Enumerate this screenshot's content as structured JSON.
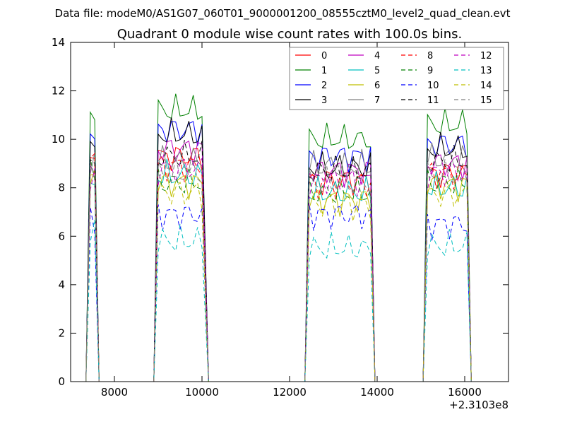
{
  "chart_data": {
    "type": "line",
    "suptitle": "Data file: modeM0/AS1G07_060T01_9000001200_08555cztM0_level2_quad_clean.evt",
    "title": "Quadrant 0 module wise count rates with 100.0s bins.",
    "xlabel": "",
    "ylabel": "",
    "x_offset_label": "+2.3103e8",
    "xlim": [
      7000,
      17000
    ],
    "ylim": [
      0,
      14
    ],
    "xticks": [
      8000,
      10000,
      12000,
      14000,
      16000
    ],
    "xtick_labels": [
      "8000",
      "10000",
      "12000",
      "14000",
      "16000"
    ],
    "yticks": [
      0,
      2,
      4,
      6,
      8,
      10,
      12,
      14
    ],
    "ytick_labels": [
      "0",
      "2",
      "4",
      "6",
      "8",
      "10",
      "12",
      "14"
    ],
    "grid": false,
    "legend_position": "top-right",
    "legend_columns": 4,
    "segments": [
      {
        "start": 7450,
        "end": 7550
      },
      {
        "start": 9000,
        "end": 10050
      },
      {
        "start": 12450,
        "end": 13850
      },
      {
        "start": 15150,
        "end": 16050
      }
    ],
    "series": [
      {
        "name": "0",
        "color": "#ff0000",
        "dash": "solid",
        "peak": [
          9.0,
          9.3,
          8.3,
          8.6
        ]
      },
      {
        "name": "1",
        "color": "#008000",
        "dash": "solid",
        "peak": [
          10.7,
          11.2,
          10.0,
          10.6
        ]
      },
      {
        "name": "2",
        "color": "#0000ff",
        "dash": "solid",
        "peak": [
          10.0,
          10.4,
          9.3,
          9.8
        ]
      },
      {
        "name": "3",
        "color": "#000000",
        "dash": "solid",
        "peak": [
          9.9,
          10.2,
          8.8,
          9.6
        ]
      },
      {
        "name": "4",
        "color": "#bf00bf",
        "dash": "solid",
        "peak": [
          9.0,
          9.6,
          8.7,
          9.0
        ]
      },
      {
        "name": "5",
        "color": "#00bfbf",
        "dash": "solid",
        "peak": [
          8.4,
          8.5,
          7.8,
          8.0
        ]
      },
      {
        "name": "6",
        "color": "#bfbf00",
        "dash": "solid",
        "peak": [
          8.5,
          8.2,
          7.5,
          8.1
        ]
      },
      {
        "name": "7",
        "color": "#808080",
        "dash": "solid",
        "peak": [
          8.8,
          9.1,
          8.9,
          9.2
        ]
      },
      {
        "name": "8",
        "color": "#ff0000",
        "dash": "dashed",
        "peak": [
          9.0,
          8.9,
          8.2,
          8.6
        ]
      },
      {
        "name": "9",
        "color": "#008000",
        "dash": "dashed",
        "peak": [
          8.6,
          8.2,
          7.8,
          8.2
        ]
      },
      {
        "name": "10",
        "color": "#0000ff",
        "dash": "dashed",
        "peak": [
          6.8,
          6.9,
          6.9,
          6.5
        ]
      },
      {
        "name": "11",
        "color": "#000000",
        "dash": "dashed",
        "peak": [
          9.4,
          9.3,
          8.7,
          9.1
        ]
      },
      {
        "name": "12",
        "color": "#bf00bf",
        "dash": "dashed",
        "peak": [
          8.6,
          8.8,
          8.3,
          8.6
        ]
      },
      {
        "name": "13",
        "color": "#00bfbf",
        "dash": "dashed",
        "peak": [
          6.2,
          5.8,
          5.5,
          5.6
        ]
      },
      {
        "name": "14",
        "color": "#bfbf00",
        "dash": "dashed",
        "peak": [
          8.3,
          7.8,
          7.3,
          7.7
        ]
      },
      {
        "name": "15",
        "color": "#808080",
        "dash": "dashed",
        "peak": [
          8.5,
          8.6,
          8.2,
          8.5
        ]
      }
    ]
  }
}
